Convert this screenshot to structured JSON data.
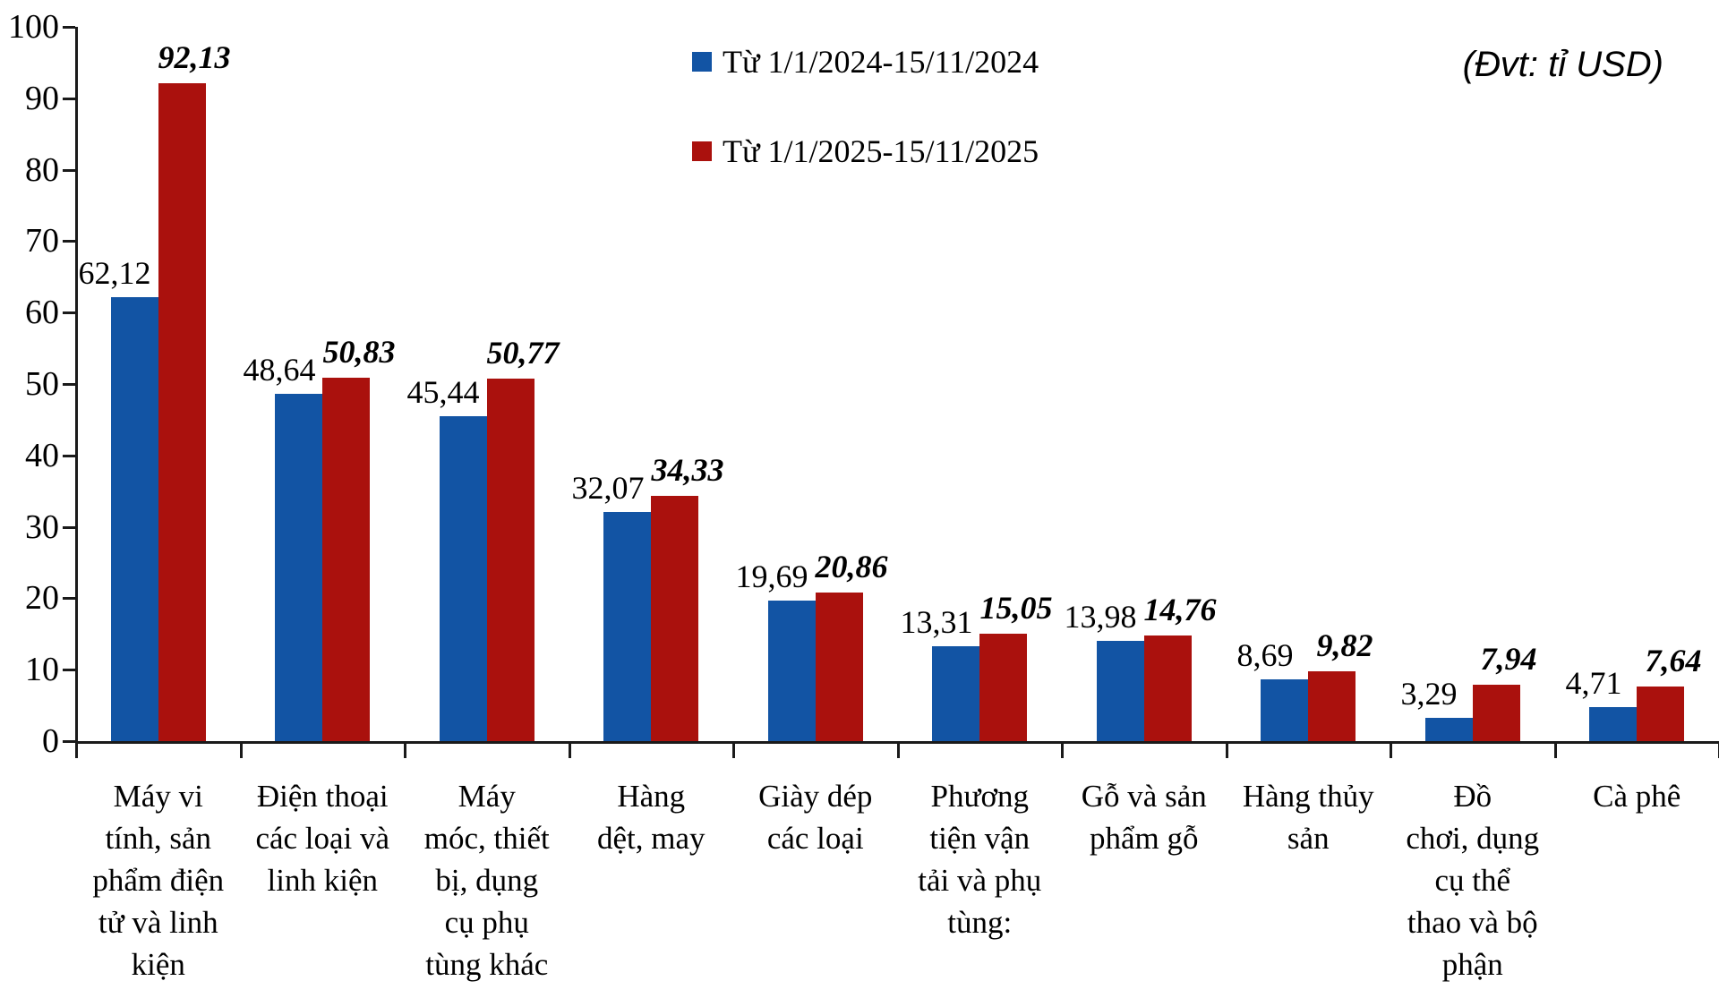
{
  "unit_label": "(Đvt: tỉ USD)",
  "colors": {
    "series_2024": "#1254a4",
    "series_2025": "#aa110d",
    "axis": "#1a1a1a",
    "background": "#ffffff"
  },
  "legend": [
    {
      "label": "Từ 1/1/2024-15/11/2024",
      "color": "#1254a4"
    },
    {
      "label": "Từ 1/1/2025-15/11/2025",
      "color": "#aa110d"
    }
  ],
  "chart_data": {
    "type": "bar",
    "title": "",
    "xlabel": "",
    "ylabel": "",
    "unit": "tỉ USD",
    "ylim": [
      0,
      100
    ],
    "yticks": [
      0,
      10,
      20,
      30,
      40,
      50,
      60,
      70,
      80,
      90,
      100
    ],
    "grid": false,
    "legend_position": "top-center",
    "categories": [
      "Máy vi\ntính, sản\nphẩm điện\ntử và linh\nkiện",
      "Điện thoại\ncác loại và\nlinh kiện",
      "Máy\nmóc, thiết\nbị, dụng\ncụ phụ\ntùng khác",
      "Hàng\ndệt, may",
      "Giày dép\ncác loại",
      "Phương\ntiện vận\ntải và phụ\ntùng:",
      "Gỗ và sản\nphẩm gỗ",
      "Hàng thủy\nsản",
      "Đồ\nchơi, dụng\ncụ thể\nthao và bộ\nphận",
      "Cà phê"
    ],
    "series": [
      {
        "name": "Từ 1/1/2024-15/11/2024",
        "color": "#1254a4",
        "values": [
          62.12,
          48.64,
          45.44,
          32.07,
          19.69,
          13.31,
          13.98,
          8.69,
          3.29,
          4.71
        ],
        "labels": [
          "62,12",
          "48,64",
          "45,44",
          "32,07",
          "19,69",
          "13,31",
          "13,98",
          "8,69",
          "3,29",
          "4,71"
        ]
      },
      {
        "name": "Từ 1/1/2025-15/11/2025",
        "color": "#aa110d",
        "values": [
          92.13,
          50.83,
          50.77,
          34.33,
          20.86,
          15.05,
          14.76,
          9.82,
          7.94,
          7.64
        ],
        "labels": [
          "92,13",
          "50,83",
          "50,77",
          "34,33",
          "20,86",
          "15,05",
          "14,76",
          "9,82",
          "7,94",
          "7,64"
        ]
      }
    ]
  }
}
